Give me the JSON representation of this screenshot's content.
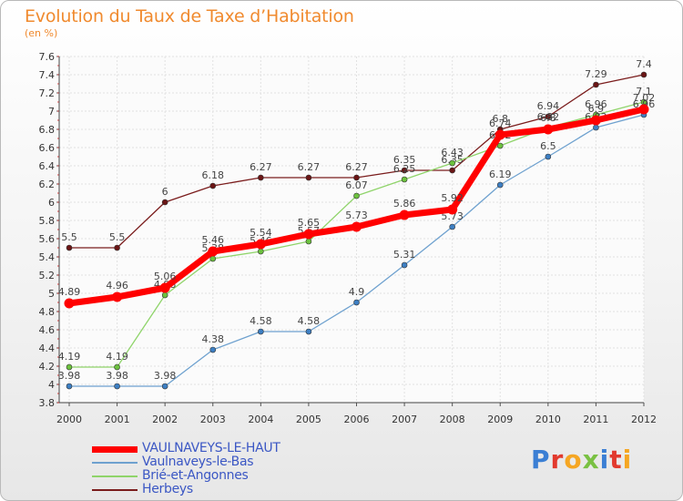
{
  "title": "Evolution du Taux de Taxe d’Habitation",
  "subtitle": "(en %)",
  "logo": [
    "P",
    "r",
    "o",
    "x",
    "i",
    "t",
    "i"
  ],
  "logo_colors": [
    "#3b7fd4",
    "#e23a2e",
    "#f5a623",
    "#7ac143",
    "#3b7fd4",
    "#e23a2e",
    "#f5a623"
  ],
  "chart_data": {
    "type": "line",
    "x": [
      "2000",
      "2001",
      "2002",
      "2003",
      "2004",
      "2005",
      "2006",
      "2007",
      "2008",
      "2009",
      "2010",
      "2011",
      "2012"
    ],
    "ylim": [
      3.8,
      7.6
    ],
    "yticks": [
      "3.8",
      "4",
      "4.2",
      "4.4",
      "4.6",
      "4.8",
      "5",
      "5.2",
      "5.4",
      "5.6",
      "5.8",
      "6",
      "6.2",
      "6.4",
      "6.6",
      "6.8",
      "7",
      "7.2",
      "7.4",
      "7.6"
    ],
    "grid": true,
    "legend_position": "bottom-left",
    "series": [
      {
        "name": "Herbeys",
        "color": "#7a1c1c",
        "dot": "#6b1515",
        "width": 1.3,
        "values": [
          5.5,
          5.5,
          6,
          6.18,
          6.27,
          6.27,
          6.27,
          6.35,
          6.35,
          6.8,
          6.94,
          7.29,
          7.4
        ],
        "labels": [
          "5.5",
          "5.5",
          "6",
          "6.18",
          "6.27",
          "6.27",
          "6.27",
          "6.35",
          "6.35",
          "6.8",
          "6.94",
          "7.29",
          "7.4"
        ]
      },
      {
        "name": "Brié-et-Angonnes",
        "color": "#8fd46a",
        "dot": "#6cc23e",
        "width": 1.3,
        "values": [
          4.19,
          4.19,
          4.98,
          5.38,
          5.46,
          5.57,
          6.07,
          6.25,
          6.43,
          6.62,
          6.82,
          6.96,
          7.1
        ],
        "labels": [
          "4.19",
          "4.19",
          "4.98",
          "5.38",
          "5.46",
          "5.57",
          "6.07",
          "6.25",
          "6.43",
          "6.62",
          "6.82",
          "6.96",
          "7.1"
        ]
      },
      {
        "name": "Vaulnaveys-le-Bas",
        "color": "#6ea1cf",
        "dot": "#3d7fc3",
        "width": 1.3,
        "values": [
          3.98,
          3.98,
          3.98,
          4.38,
          4.58,
          4.58,
          4.9,
          5.31,
          5.73,
          6.19,
          6.5,
          6.82,
          6.96
        ],
        "labels": [
          "3.98",
          "3.98",
          "3.98",
          "4.38",
          "4.58",
          "4.58",
          "4.9",
          "5.31",
          "5.73",
          "6.19",
          "6.5",
          "6.82",
          "6.96"
        ]
      },
      {
        "name": "VAULNAVEYS-LE-HAUT",
        "color": "#ff0000",
        "dot": "#ff0000",
        "width": 7,
        "values": [
          4.89,
          4.96,
          5.06,
          5.46,
          5.54,
          5.65,
          5.73,
          5.86,
          5.92,
          6.74,
          6.8,
          6.9,
          7.02
        ],
        "labels": [
          "4.89",
          "4.96",
          "5.06",
          "5.46",
          "5.54",
          "5.65",
          "5.73",
          "5.86",
          "5.92",
          "6.74",
          "6.8",
          "6.9",
          "7.02"
        ]
      }
    ],
    "legend": [
      {
        "name": "VAULNAVEYS-LE-HAUT",
        "color": "#ff0000",
        "width": 7
      },
      {
        "name": "Vaulnaveys-le-Bas",
        "color": "#6ea1cf",
        "width": 2
      },
      {
        "name": "Brié-et-Angonnes",
        "color": "#8fd46a",
        "width": 2
      },
      {
        "name": "Herbeys",
        "color": "#7a1c1c",
        "width": 2
      }
    ]
  }
}
